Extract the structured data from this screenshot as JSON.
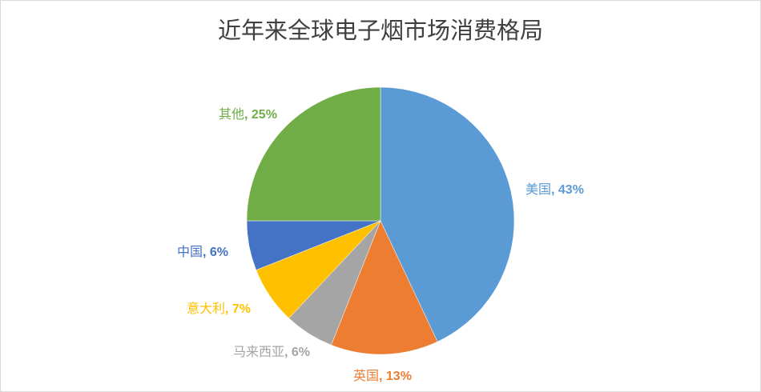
{
  "chart_data": {
    "type": "pie",
    "title": "近年来全球电子烟市场消费格局",
    "start": "top",
    "direction": "clockwise",
    "slices": [
      {
        "name": "美国",
        "value": 43,
        "color": "#5B9BD5"
      },
      {
        "name": "英国",
        "value": 13,
        "color": "#ED7D31"
      },
      {
        "name": "马来西亚",
        "value": 6,
        "color": "#A5A5A5"
      },
      {
        "name": "意大利",
        "value": 7,
        "color": "#FFC000"
      },
      {
        "name": "中国",
        "value": 6,
        "color": "#4472C4"
      },
      {
        "name": "其他",
        "value": 25,
        "color": "#70AD47"
      }
    ]
  }
}
